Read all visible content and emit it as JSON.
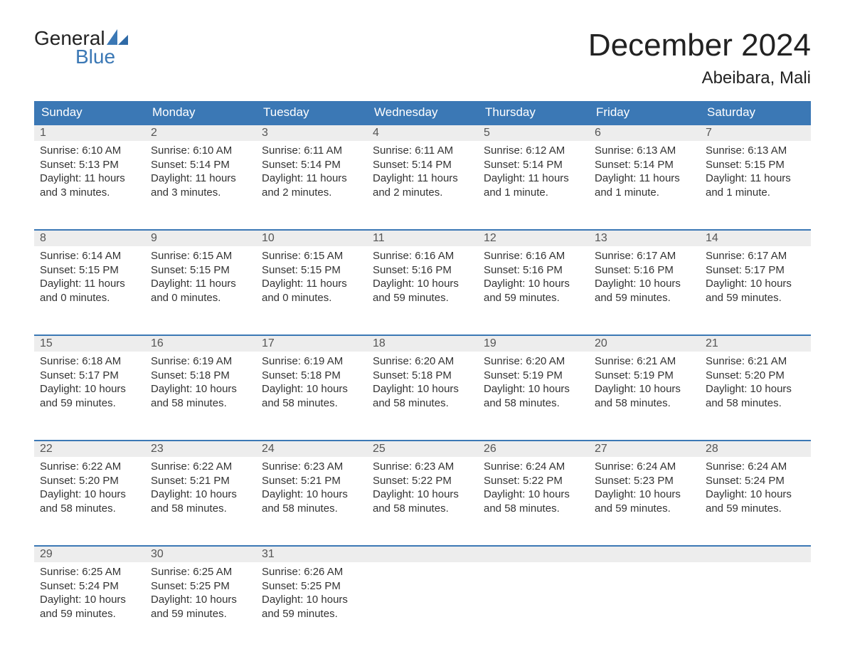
{
  "logo": {
    "word1": "General",
    "word2": "Blue"
  },
  "title": "December 2024",
  "location": "Abeibara, Mali",
  "colors": {
    "header_bg": "#3b78b5",
    "header_text": "#ffffff",
    "daynum_bg": "#ededed",
    "daynum_text": "#555555",
    "body_text": "#333333",
    "page_bg": "#ffffff",
    "rule": "#3b78b5",
    "logo_blue": "#3b78b5",
    "logo_dark": "#222222"
  },
  "typography": {
    "title_fontsize": 44,
    "location_fontsize": 24,
    "dow_fontsize": 17,
    "daynum_fontsize": 16,
    "body_fontsize": 15,
    "logo_fontsize": 28
  },
  "days_of_week": [
    "Sunday",
    "Monday",
    "Tuesday",
    "Wednesday",
    "Thursday",
    "Friday",
    "Saturday"
  ],
  "weeks": [
    [
      {
        "n": "1",
        "sunrise": "Sunrise: 6:10 AM",
        "sunset": "Sunset: 5:13 PM",
        "d1": "Daylight: 11 hours",
        "d2": "and 3 minutes."
      },
      {
        "n": "2",
        "sunrise": "Sunrise: 6:10 AM",
        "sunset": "Sunset: 5:14 PM",
        "d1": "Daylight: 11 hours",
        "d2": "and 3 minutes."
      },
      {
        "n": "3",
        "sunrise": "Sunrise: 6:11 AM",
        "sunset": "Sunset: 5:14 PM",
        "d1": "Daylight: 11 hours",
        "d2": "and 2 minutes."
      },
      {
        "n": "4",
        "sunrise": "Sunrise: 6:11 AM",
        "sunset": "Sunset: 5:14 PM",
        "d1": "Daylight: 11 hours",
        "d2": "and 2 minutes."
      },
      {
        "n": "5",
        "sunrise": "Sunrise: 6:12 AM",
        "sunset": "Sunset: 5:14 PM",
        "d1": "Daylight: 11 hours",
        "d2": "and 1 minute."
      },
      {
        "n": "6",
        "sunrise": "Sunrise: 6:13 AM",
        "sunset": "Sunset: 5:14 PM",
        "d1": "Daylight: 11 hours",
        "d2": "and 1 minute."
      },
      {
        "n": "7",
        "sunrise": "Sunrise: 6:13 AM",
        "sunset": "Sunset: 5:15 PM",
        "d1": "Daylight: 11 hours",
        "d2": "and 1 minute."
      }
    ],
    [
      {
        "n": "8",
        "sunrise": "Sunrise: 6:14 AM",
        "sunset": "Sunset: 5:15 PM",
        "d1": "Daylight: 11 hours",
        "d2": "and 0 minutes."
      },
      {
        "n": "9",
        "sunrise": "Sunrise: 6:15 AM",
        "sunset": "Sunset: 5:15 PM",
        "d1": "Daylight: 11 hours",
        "d2": "and 0 minutes."
      },
      {
        "n": "10",
        "sunrise": "Sunrise: 6:15 AM",
        "sunset": "Sunset: 5:15 PM",
        "d1": "Daylight: 11 hours",
        "d2": "and 0 minutes."
      },
      {
        "n": "11",
        "sunrise": "Sunrise: 6:16 AM",
        "sunset": "Sunset: 5:16 PM",
        "d1": "Daylight: 10 hours",
        "d2": "and 59 minutes."
      },
      {
        "n": "12",
        "sunrise": "Sunrise: 6:16 AM",
        "sunset": "Sunset: 5:16 PM",
        "d1": "Daylight: 10 hours",
        "d2": "and 59 minutes."
      },
      {
        "n": "13",
        "sunrise": "Sunrise: 6:17 AM",
        "sunset": "Sunset: 5:16 PM",
        "d1": "Daylight: 10 hours",
        "d2": "and 59 minutes."
      },
      {
        "n": "14",
        "sunrise": "Sunrise: 6:17 AM",
        "sunset": "Sunset: 5:17 PM",
        "d1": "Daylight: 10 hours",
        "d2": "and 59 minutes."
      }
    ],
    [
      {
        "n": "15",
        "sunrise": "Sunrise: 6:18 AM",
        "sunset": "Sunset: 5:17 PM",
        "d1": "Daylight: 10 hours",
        "d2": "and 59 minutes."
      },
      {
        "n": "16",
        "sunrise": "Sunrise: 6:19 AM",
        "sunset": "Sunset: 5:18 PM",
        "d1": "Daylight: 10 hours",
        "d2": "and 58 minutes."
      },
      {
        "n": "17",
        "sunrise": "Sunrise: 6:19 AM",
        "sunset": "Sunset: 5:18 PM",
        "d1": "Daylight: 10 hours",
        "d2": "and 58 minutes."
      },
      {
        "n": "18",
        "sunrise": "Sunrise: 6:20 AM",
        "sunset": "Sunset: 5:18 PM",
        "d1": "Daylight: 10 hours",
        "d2": "and 58 minutes."
      },
      {
        "n": "19",
        "sunrise": "Sunrise: 6:20 AM",
        "sunset": "Sunset: 5:19 PM",
        "d1": "Daylight: 10 hours",
        "d2": "and 58 minutes."
      },
      {
        "n": "20",
        "sunrise": "Sunrise: 6:21 AM",
        "sunset": "Sunset: 5:19 PM",
        "d1": "Daylight: 10 hours",
        "d2": "and 58 minutes."
      },
      {
        "n": "21",
        "sunrise": "Sunrise: 6:21 AM",
        "sunset": "Sunset: 5:20 PM",
        "d1": "Daylight: 10 hours",
        "d2": "and 58 minutes."
      }
    ],
    [
      {
        "n": "22",
        "sunrise": "Sunrise: 6:22 AM",
        "sunset": "Sunset: 5:20 PM",
        "d1": "Daylight: 10 hours",
        "d2": "and 58 minutes."
      },
      {
        "n": "23",
        "sunrise": "Sunrise: 6:22 AM",
        "sunset": "Sunset: 5:21 PM",
        "d1": "Daylight: 10 hours",
        "d2": "and 58 minutes."
      },
      {
        "n": "24",
        "sunrise": "Sunrise: 6:23 AM",
        "sunset": "Sunset: 5:21 PM",
        "d1": "Daylight: 10 hours",
        "d2": "and 58 minutes."
      },
      {
        "n": "25",
        "sunrise": "Sunrise: 6:23 AM",
        "sunset": "Sunset: 5:22 PM",
        "d1": "Daylight: 10 hours",
        "d2": "and 58 minutes."
      },
      {
        "n": "26",
        "sunrise": "Sunrise: 6:24 AM",
        "sunset": "Sunset: 5:22 PM",
        "d1": "Daylight: 10 hours",
        "d2": "and 58 minutes."
      },
      {
        "n": "27",
        "sunrise": "Sunrise: 6:24 AM",
        "sunset": "Sunset: 5:23 PM",
        "d1": "Daylight: 10 hours",
        "d2": "and 59 minutes."
      },
      {
        "n": "28",
        "sunrise": "Sunrise: 6:24 AM",
        "sunset": "Sunset: 5:24 PM",
        "d1": "Daylight: 10 hours",
        "d2": "and 59 minutes."
      }
    ],
    [
      {
        "n": "29",
        "sunrise": "Sunrise: 6:25 AM",
        "sunset": "Sunset: 5:24 PM",
        "d1": "Daylight: 10 hours",
        "d2": "and 59 minutes."
      },
      {
        "n": "30",
        "sunrise": "Sunrise: 6:25 AM",
        "sunset": "Sunset: 5:25 PM",
        "d1": "Daylight: 10 hours",
        "d2": "and 59 minutes."
      },
      {
        "n": "31",
        "sunrise": "Sunrise: 6:26 AM",
        "sunset": "Sunset: 5:25 PM",
        "d1": "Daylight: 10 hours",
        "d2": "and 59 minutes."
      },
      null,
      null,
      null,
      null
    ]
  ]
}
